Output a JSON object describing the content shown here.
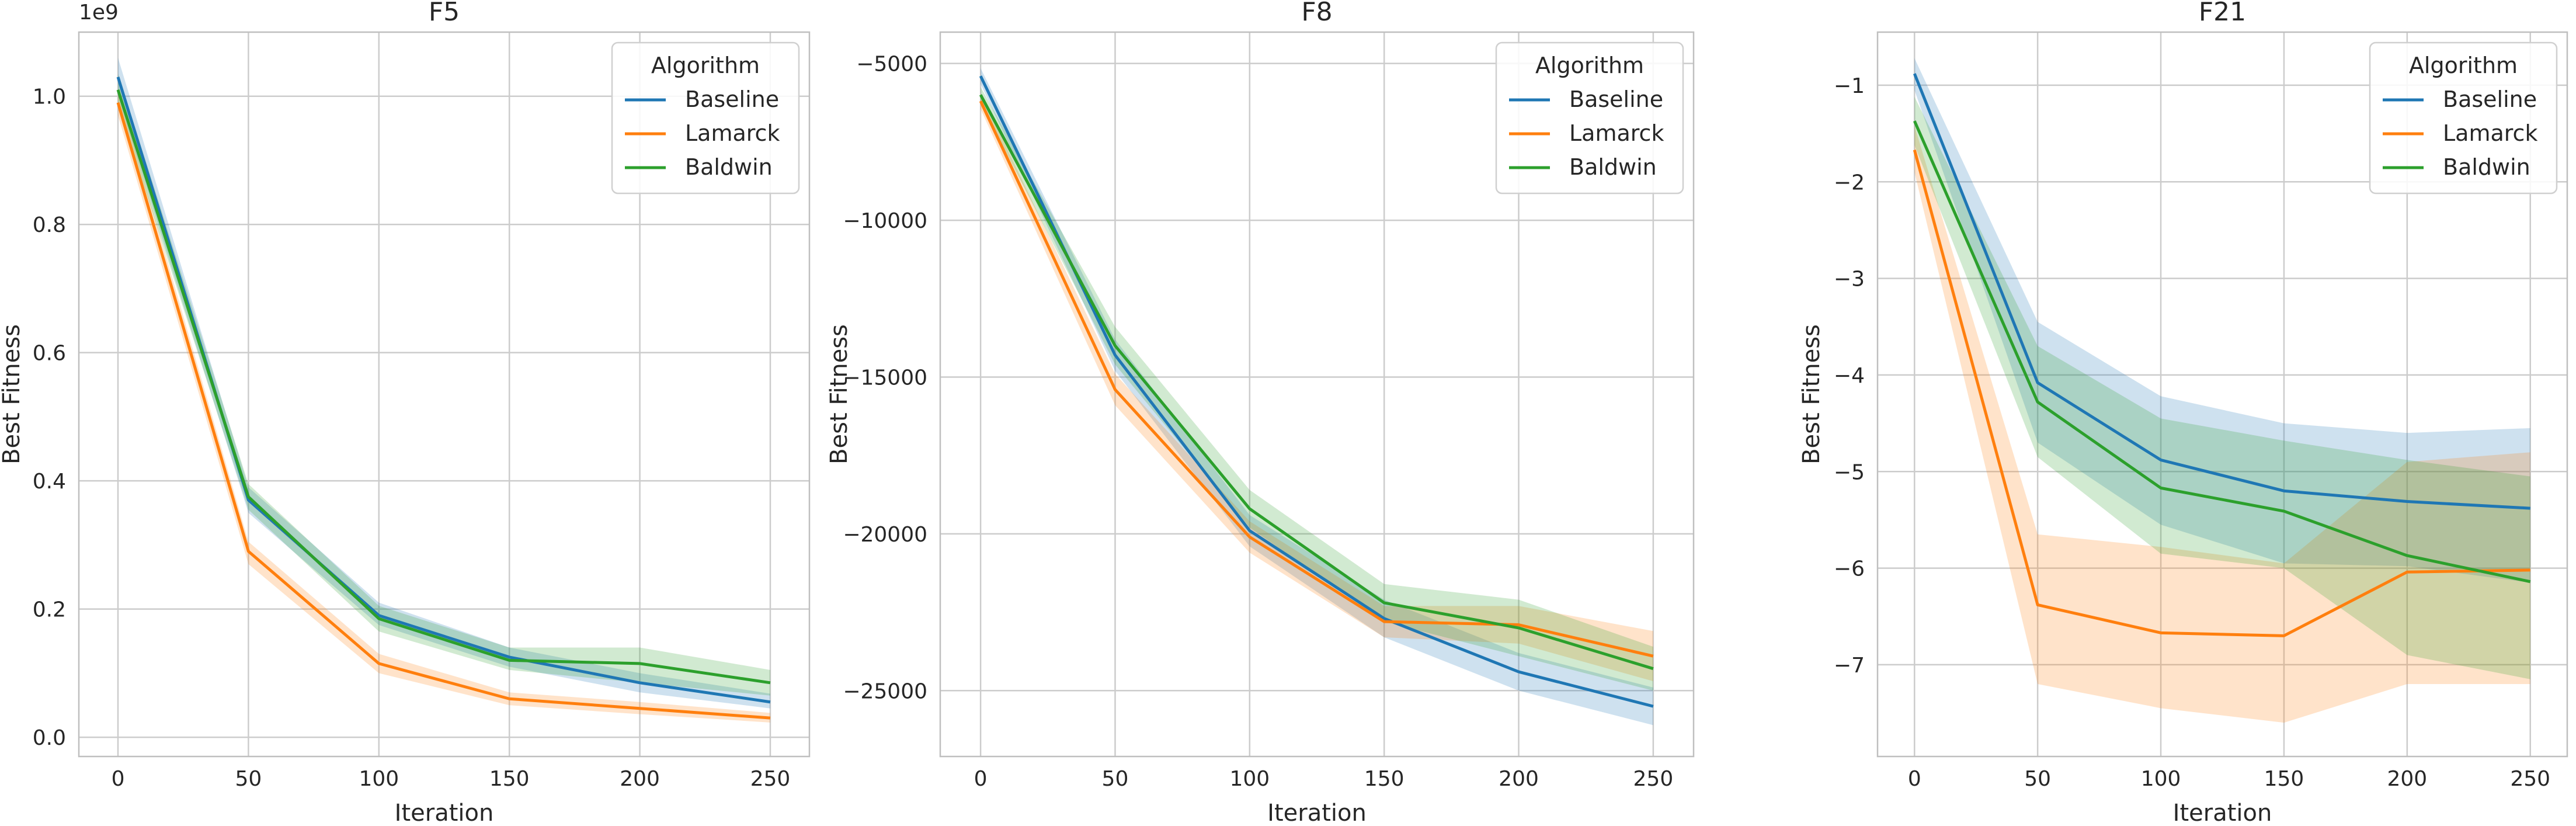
{
  "figure": {
    "colors": {
      "Baseline": "#1f77b4",
      "Lamarck": "#ff7f0e",
      "Baldwin": "#2ca02c",
      "grid": "#cccccc",
      "frame": "#bfbfbf"
    }
  },
  "chart_data": [
    {
      "type": "line",
      "title": "F5",
      "xlabel": "Iteration",
      "ylabel": "Best Fitness",
      "sci_multiplier": "1e9",
      "xlim": [
        -15,
        265
      ],
      "ylim": [
        -0.03,
        1.1
      ],
      "xticks": [
        0,
        50,
        100,
        150,
        200,
        250
      ],
      "yticks": [
        0.0,
        0.2,
        0.4,
        0.6,
        0.8,
        1.0
      ],
      "ytick_labels": [
        "0.0",
        "0.2",
        "0.4",
        "0.6",
        "0.8",
        "1.0"
      ],
      "legend": {
        "title": "Algorithm",
        "position": "top-right"
      },
      "x": [
        0,
        50,
        100,
        150,
        200,
        250
      ],
      "series": [
        {
          "name": "Baseline",
          "values": [
            1.03,
            0.37,
            0.19,
            0.125,
            0.085,
            0.055
          ],
          "lower": [
            1.0,
            0.35,
            0.175,
            0.11,
            0.07,
            0.045
          ],
          "upper": [
            1.06,
            0.39,
            0.21,
            0.14,
            0.1,
            0.068
          ]
        },
        {
          "name": "Lamarck",
          "values": [
            0.99,
            0.29,
            0.115,
            0.06,
            0.045,
            0.03
          ],
          "lower": [
            0.97,
            0.27,
            0.1,
            0.05,
            0.036,
            0.023
          ],
          "upper": [
            1.01,
            0.305,
            0.13,
            0.07,
            0.055,
            0.038
          ]
        },
        {
          "name": "Baldwin",
          "values": [
            1.01,
            0.375,
            0.185,
            0.12,
            0.115,
            0.085
          ],
          "lower": [
            0.985,
            0.355,
            0.165,
            0.105,
            0.085,
            0.065
          ],
          "upper": [
            1.035,
            0.395,
            0.205,
            0.14,
            0.14,
            0.105
          ]
        }
      ]
    },
    {
      "type": "line",
      "title": "F8",
      "xlabel": "Iteration",
      "ylabel": "Best Fitness",
      "sci_multiplier": "",
      "xlim": [
        -15,
        265
      ],
      "ylim": [
        -27100,
        -4000
      ],
      "xticks": [
        0,
        50,
        100,
        150,
        200,
        250
      ],
      "yticks": [
        -25000,
        -20000,
        -15000,
        -10000,
        -5000
      ],
      "ytick_labels": [
        "−25000",
        "−20000",
        "−15000",
        "−10000",
        "−5000"
      ],
      "legend": {
        "title": "Algorithm",
        "position": "top-right"
      },
      "x": [
        0,
        50,
        100,
        150,
        200,
        250
      ],
      "series": [
        {
          "name": "Baseline",
          "values": [
            -5400,
            -14300,
            -19900,
            -22700,
            -24400,
            -25500
          ],
          "lower": [
            -5650,
            -14800,
            -20400,
            -23300,
            -25000,
            -26100
          ],
          "upper": [
            -5150,
            -13800,
            -19400,
            -22100,
            -23800,
            -24900
          ]
        },
        {
          "name": "Lamarck",
          "values": [
            -6200,
            -15400,
            -20100,
            -22800,
            -22900,
            -23900
          ],
          "lower": [
            -6450,
            -15900,
            -20600,
            -23300,
            -23500,
            -24700
          ],
          "upper": [
            -5950,
            -14900,
            -19600,
            -22300,
            -22300,
            -23100
          ]
        },
        {
          "name": "Baldwin",
          "values": [
            -6000,
            -14000,
            -19200,
            -22200,
            -23000,
            -24300
          ],
          "lower": [
            -6250,
            -14600,
            -19800,
            -22800,
            -23900,
            -25000
          ],
          "upper": [
            -5750,
            -13400,
            -18600,
            -21600,
            -22100,
            -23600
          ]
        }
      ]
    },
    {
      "type": "line",
      "title": "F21",
      "xlabel": "Iteration",
      "ylabel": "Best Fitness",
      "sci_multiplier": "",
      "xlim": [
        -15,
        265
      ],
      "ylim": [
        -7.95,
        -0.45
      ],
      "xticks": [
        0,
        50,
        100,
        150,
        200,
        250
      ],
      "yticks": [
        -7,
        -6,
        -5,
        -4,
        -3,
        -2,
        -1
      ],
      "ytick_labels": [
        "−7",
        "−6",
        "−5",
        "−4",
        "−3",
        "−2",
        "−1"
      ],
      "legend": {
        "title": "Algorithm",
        "position": "top-right"
      },
      "x": [
        0,
        50,
        100,
        150,
        200,
        250
      ],
      "series": [
        {
          "name": "Baseline",
          "values": [
            -0.88,
            -4.08,
            -4.88,
            -5.2,
            -5.31,
            -5.38
          ],
          "lower": [
            -1.05,
            -4.7,
            -5.55,
            -5.95,
            -5.98,
            -6.15
          ],
          "upper": [
            -0.72,
            -3.45,
            -4.22,
            -4.5,
            -4.6,
            -4.55
          ]
        },
        {
          "name": "Lamarck",
          "values": [
            -1.67,
            -6.38,
            -6.67,
            -6.7,
            -6.04,
            -6.02
          ],
          "lower": [
            -1.9,
            -7.2,
            -7.45,
            -7.6,
            -7.2,
            -7.2
          ],
          "upper": [
            -1.42,
            -5.65,
            -5.78,
            -5.95,
            -4.9,
            -4.8
          ]
        },
        {
          "name": "Baldwin",
          "values": [
            -1.37,
            -4.28,
            -5.17,
            -5.41,
            -5.87,
            -6.14
          ],
          "lower": [
            -1.62,
            -4.85,
            -5.85,
            -6.0,
            -6.9,
            -7.15
          ],
          "upper": [
            -1.12,
            -3.7,
            -4.45,
            -4.68,
            -4.88,
            -5.05
          ]
        }
      ]
    }
  ]
}
